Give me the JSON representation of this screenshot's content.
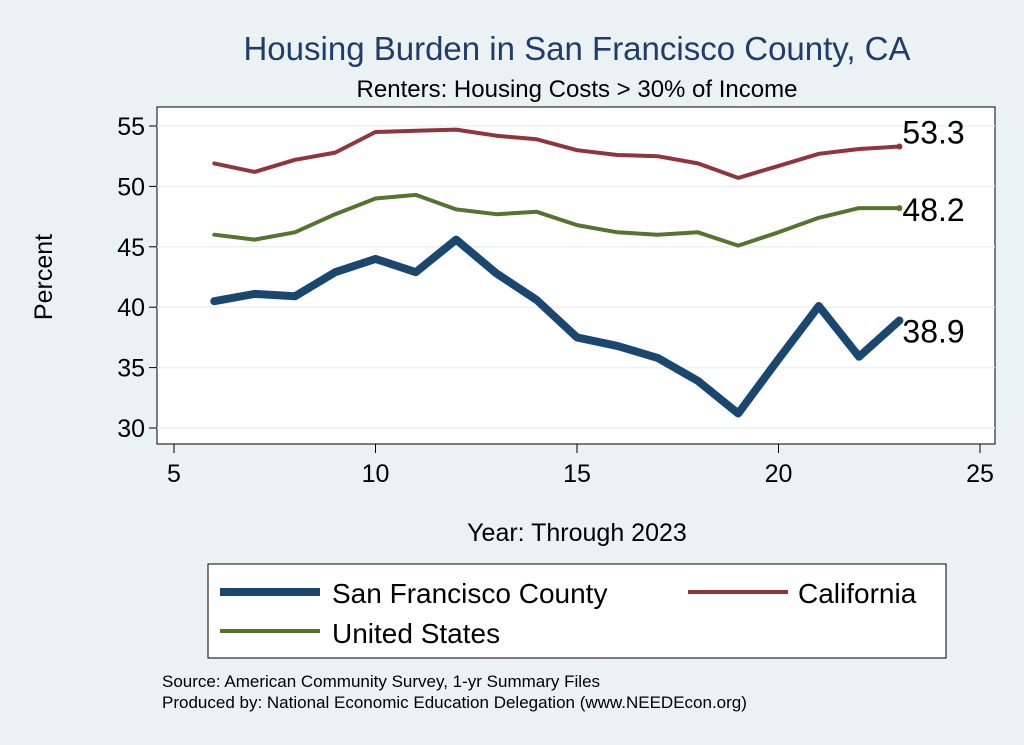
{
  "chart_data": {
    "type": "line",
    "title": "Housing Burden in San Francisco County, CA",
    "subtitle": "Renters: Housing Costs > 30% of Income",
    "xlabel": "Year: Through 2023",
    "ylabel": "Percent",
    "xlim": [
      5,
      25
    ],
    "ylim": [
      29,
      56
    ],
    "xticks": [
      5,
      10,
      15,
      20,
      25
    ],
    "yticks": [
      30,
      35,
      40,
      45,
      50,
      55
    ],
    "grid": true,
    "series": [
      {
        "name": "San Francisco County",
        "color": "#1a476f",
        "x": [
          6,
          7,
          8,
          9,
          10,
          11,
          12,
          13,
          14,
          15,
          16,
          17,
          18,
          19,
          20,
          21,
          22,
          23
        ],
        "values": [
          40.5,
          41.1,
          40.9,
          42.9,
          44.0,
          42.9,
          45.6,
          42.8,
          40.6,
          37.5,
          36.8,
          35.8,
          33.9,
          31.2,
          35.7,
          40.1,
          35.9,
          38.9
        ],
        "end_label": "38.9"
      },
      {
        "name": "California",
        "color": "#90353b",
        "x": [
          6,
          7,
          8,
          9,
          10,
          11,
          12,
          13,
          14,
          15,
          16,
          17,
          18,
          19,
          20,
          21,
          22,
          23
        ],
        "values": [
          51.9,
          51.2,
          52.2,
          52.8,
          54.5,
          54.6,
          54.7,
          54.2,
          53.9,
          53.0,
          52.6,
          52.5,
          51.9,
          50.7,
          51.7,
          52.7,
          53.1,
          53.3
        ],
        "end_label": "53.3"
      },
      {
        "name": "United States",
        "color": "#55752f",
        "x": [
          6,
          7,
          8,
          9,
          10,
          11,
          12,
          13,
          14,
          15,
          16,
          17,
          18,
          19,
          20,
          21,
          22,
          23
        ],
        "values": [
          46.0,
          45.6,
          46.2,
          47.7,
          49.0,
          49.3,
          48.1,
          47.7,
          47.9,
          46.8,
          46.2,
          46.0,
          46.2,
          45.1,
          46.2,
          47.4,
          48.2,
          48.2
        ],
        "end_label": "48.2"
      }
    ],
    "legend": [
      "San Francisco County",
      "California",
      "United States"
    ],
    "legend_position": "bottom",
    "source_lines": [
      "Source: American Community Survey, 1-yr Summary Files",
      "Produced by: National Economic Education Delegation (www.NEEDEcon.org)"
    ]
  }
}
